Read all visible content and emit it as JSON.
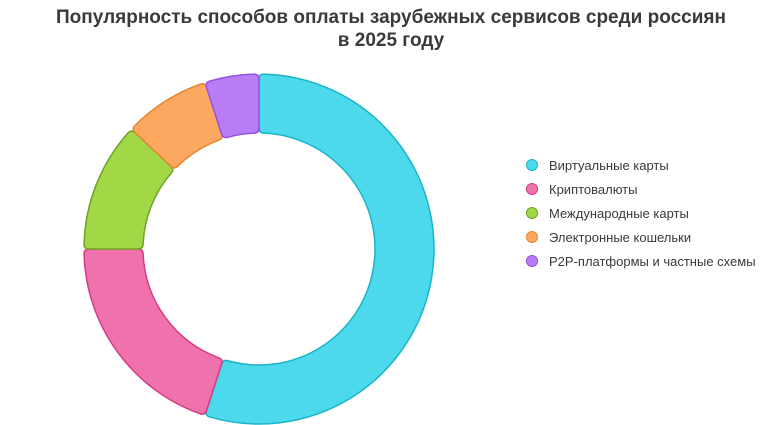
{
  "chart_data": {
    "type": "doughnut",
    "title_lines": [
      "Популярность способов оплаты зарубежных сервисов среди россиян",
      "в 2025 году"
    ],
    "legend_position": "right",
    "series": [
      {
        "name": "Популярность",
        "values": [
          {
            "label": "Виртуальные карты",
            "value": 55,
            "fill": "#4dd9ec",
            "stroke": "#1ab4c8"
          },
          {
            "label": "Криптовалюты",
            "value": 20,
            "fill": "#ef72ac",
            "stroke": "#d63a86"
          },
          {
            "label": "Международные карты",
            "value": 12,
            "fill": "#a2d745",
            "stroke": "#6fa327"
          },
          {
            "label": "Электронные кошельки",
            "value": 8,
            "fill": "#fca860",
            "stroke": "#e7842f"
          },
          {
            "label": "P2P-платформы и частные схемы",
            "value": 5,
            "fill": "#b87cf5",
            "stroke": "#9453e0"
          }
        ]
      }
    ]
  }
}
